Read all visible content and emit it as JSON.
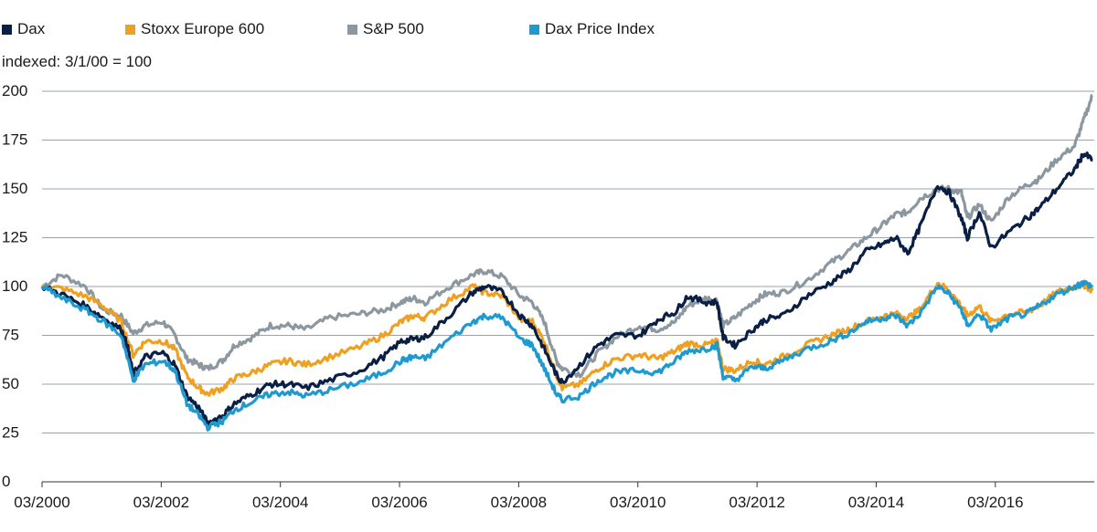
{
  "chart_data": {
    "type": "line",
    "subtitle": "indexed: 3/1/00 = 100",
    "ylim": [
      0,
      200
    ],
    "yticks": [
      "0",
      "25",
      "50",
      "75",
      "100",
      "125",
      "150",
      "175",
      "200"
    ],
    "xlim": [
      2000.17,
      2017.83
    ],
    "xticks": [
      {
        "label": "03/2000",
        "x": 2000.17
      },
      {
        "label": "03/2002",
        "x": 2002.17
      },
      {
        "label": "03/2004",
        "x": 2004.17
      },
      {
        "label": "03/2006",
        "x": 2006.17
      },
      {
        "label": "03/2008",
        "x": 2008.17
      },
      {
        "label": "03/2010",
        "x": 2010.17
      },
      {
        "label": "03/2012",
        "x": 2012.17
      },
      {
        "label": "03/2014",
        "x": 2014.17
      },
      {
        "label": "03/2016",
        "x": 2016.17
      }
    ],
    "grid": "horizontal",
    "legend_position": "top-left",
    "series": [
      {
        "name": "Dax",
        "color": "#0a1f44",
        "points": [
          [
            2000.17,
            100
          ],
          [
            2000.5,
            96
          ],
          [
            2000.9,
            90
          ],
          [
            2001.2,
            84
          ],
          [
            2001.5,
            78
          ],
          [
            2001.6,
            70
          ],
          [
            2001.7,
            55
          ],
          [
            2001.9,
            64
          ],
          [
            2002.2,
            66
          ],
          [
            2002.4,
            60
          ],
          [
            2002.6,
            44
          ],
          [
            2002.8,
            38
          ],
          [
            2002.95,
            30
          ],
          [
            2003.2,
            34
          ],
          [
            2003.4,
            40
          ],
          [
            2003.7,
            45
          ],
          [
            2004.0,
            50
          ],
          [
            2004.3,
            50
          ],
          [
            2004.6,
            48
          ],
          [
            2005.0,
            52
          ],
          [
            2005.5,
            57
          ],
          [
            2005.9,
            64
          ],
          [
            2006.2,
            72
          ],
          [
            2006.4,
            73
          ],
          [
            2006.6,
            74
          ],
          [
            2007.0,
            85
          ],
          [
            2007.4,
            97
          ],
          [
            2007.6,
            100
          ],
          [
            2007.9,
            97
          ],
          [
            2008.2,
            85
          ],
          [
            2008.4,
            80
          ],
          [
            2008.6,
            68
          ],
          [
            2008.8,
            55
          ],
          [
            2008.9,
            51
          ],
          [
            2009.2,
            60
          ],
          [
            2009.5,
            70
          ],
          [
            2009.8,
            75
          ],
          [
            2010.2,
            75
          ],
          [
            2010.5,
            83
          ],
          [
            2010.8,
            87
          ],
          [
            2011.0,
            95
          ],
          [
            2011.3,
            92
          ],
          [
            2011.5,
            92
          ],
          [
            2011.6,
            74
          ],
          [
            2011.8,
            70
          ],
          [
            2012.1,
            78
          ],
          [
            2012.3,
            83
          ],
          [
            2012.6,
            85
          ],
          [
            2013.0,
            95
          ],
          [
            2013.4,
            102
          ],
          [
            2013.7,
            108
          ],
          [
            2014.0,
            118
          ],
          [
            2014.3,
            122
          ],
          [
            2014.5,
            125
          ],
          [
            2014.7,
            117
          ],
          [
            2014.9,
            130
          ],
          [
            2015.2,
            152
          ],
          [
            2015.4,
            148
          ],
          [
            2015.6,
            135
          ],
          [
            2015.7,
            125
          ],
          [
            2015.9,
            138
          ],
          [
            2016.1,
            120
          ],
          [
            2016.4,
            128
          ],
          [
            2016.7,
            135
          ],
          [
            2016.9,
            140
          ],
          [
            2017.2,
            150
          ],
          [
            2017.5,
            160
          ],
          [
            2017.65,
            168
          ],
          [
            2017.8,
            165
          ]
        ]
      },
      {
        "name": "Stoxx Europe 600",
        "color": "#f0a020",
        "points": [
          [
            2000.17,
            100
          ],
          [
            2000.5,
            99
          ],
          [
            2000.9,
            95
          ],
          [
            2001.2,
            90
          ],
          [
            2001.5,
            82
          ],
          [
            2001.7,
            65
          ],
          [
            2001.9,
            72
          ],
          [
            2002.2,
            72
          ],
          [
            2002.4,
            68
          ],
          [
            2002.6,
            54
          ],
          [
            2002.8,
            48
          ],
          [
            2002.95,
            45
          ],
          [
            2003.2,
            48
          ],
          [
            2003.4,
            53
          ],
          [
            2003.7,
            56
          ],
          [
            2004.0,
            60
          ],
          [
            2004.3,
            62
          ],
          [
            2004.6,
            60
          ],
          [
            2005.0,
            64
          ],
          [
            2005.5,
            69
          ],
          [
            2005.9,
            75
          ],
          [
            2006.2,
            82
          ],
          [
            2006.4,
            85
          ],
          [
            2006.6,
            84
          ],
          [
            2007.0,
            93
          ],
          [
            2007.4,
            100
          ],
          [
            2007.6,
            97
          ],
          [
            2007.9,
            95
          ],
          [
            2008.2,
            83
          ],
          [
            2008.4,
            82
          ],
          [
            2008.6,
            72
          ],
          [
            2008.8,
            55
          ],
          [
            2008.9,
            48
          ],
          [
            2009.2,
            50
          ],
          [
            2009.5,
            58
          ],
          [
            2009.8,
            63
          ],
          [
            2010.2,
            65
          ],
          [
            2010.5,
            63
          ],
          [
            2010.8,
            67
          ],
          [
            2011.0,
            71
          ],
          [
            2011.3,
            70
          ],
          [
            2011.5,
            72
          ],
          [
            2011.6,
            58
          ],
          [
            2011.8,
            57
          ],
          [
            2012.1,
            62
          ],
          [
            2012.3,
            60
          ],
          [
            2012.6,
            64
          ],
          [
            2013.0,
            70
          ],
          [
            2013.4,
            75
          ],
          [
            2013.7,
            78
          ],
          [
            2014.0,
            82
          ],
          [
            2014.3,
            85
          ],
          [
            2014.5,
            86
          ],
          [
            2014.7,
            84
          ],
          [
            2014.9,
            88
          ],
          [
            2015.2,
            102
          ],
          [
            2015.4,
            98
          ],
          [
            2015.6,
            90
          ],
          [
            2015.7,
            85
          ],
          [
            2015.9,
            90
          ],
          [
            2016.1,
            82
          ],
          [
            2016.4,
            86
          ],
          [
            2016.7,
            87
          ],
          [
            2016.9,
            90
          ],
          [
            2017.2,
            97
          ],
          [
            2017.5,
            100
          ],
          [
            2017.65,
            101
          ],
          [
            2017.8,
            98
          ]
        ]
      },
      {
        "name": "S&P 500",
        "color": "#8c97a0",
        "points": [
          [
            2000.17,
            100
          ],
          [
            2000.5,
            106
          ],
          [
            2000.9,
            100
          ],
          [
            2001.2,
            88
          ],
          [
            2001.5,
            85
          ],
          [
            2001.7,
            76
          ],
          [
            2001.9,
            80
          ],
          [
            2002.2,
            82
          ],
          [
            2002.4,
            75
          ],
          [
            2002.6,
            63
          ],
          [
            2002.8,
            60
          ],
          [
            2002.95,
            58
          ],
          [
            2003.2,
            62
          ],
          [
            2003.4,
            70
          ],
          [
            2003.7,
            74
          ],
          [
            2004.0,
            80
          ],
          [
            2004.3,
            80
          ],
          [
            2004.6,
            78
          ],
          [
            2005.0,
            84
          ],
          [
            2005.5,
            86
          ],
          [
            2005.9,
            88
          ],
          [
            2006.2,
            92
          ],
          [
            2006.4,
            94
          ],
          [
            2006.6,
            92
          ],
          [
            2007.0,
            100
          ],
          [
            2007.4,
            106
          ],
          [
            2007.6,
            108
          ],
          [
            2007.9,
            105
          ],
          [
            2008.2,
            95
          ],
          [
            2008.4,
            92
          ],
          [
            2008.6,
            82
          ],
          [
            2008.8,
            62
          ],
          [
            2008.9,
            58
          ],
          [
            2009.2,
            55
          ],
          [
            2009.5,
            66
          ],
          [
            2009.8,
            74
          ],
          [
            2010.2,
            80
          ],
          [
            2010.5,
            78
          ],
          [
            2010.8,
            82
          ],
          [
            2011.0,
            90
          ],
          [
            2011.3,
            94
          ],
          [
            2011.5,
            93
          ],
          [
            2011.6,
            80
          ],
          [
            2011.8,
            84
          ],
          [
            2012.1,
            92
          ],
          [
            2012.3,
            96
          ],
          [
            2012.6,
            97
          ],
          [
            2013.0,
            103
          ],
          [
            2013.4,
            112
          ],
          [
            2013.7,
            118
          ],
          [
            2014.0,
            125
          ],
          [
            2014.3,
            132
          ],
          [
            2014.5,
            137
          ],
          [
            2014.7,
            138
          ],
          [
            2014.9,
            145
          ],
          [
            2015.2,
            150
          ],
          [
            2015.4,
            150
          ],
          [
            2015.6,
            148
          ],
          [
            2015.7,
            135
          ],
          [
            2015.9,
            142
          ],
          [
            2016.1,
            133
          ],
          [
            2016.4,
            146
          ],
          [
            2016.7,
            152
          ],
          [
            2016.9,
            155
          ],
          [
            2017.2,
            165
          ],
          [
            2017.5,
            172
          ],
          [
            2017.65,
            185
          ],
          [
            2017.8,
            198
          ]
        ]
      },
      {
        "name": "Dax Price Index",
        "color": "#1e9ad0",
        "points": [
          [
            2000.17,
            100
          ],
          [
            2000.5,
            94
          ],
          [
            2000.9,
            88
          ],
          [
            2001.2,
            82
          ],
          [
            2001.5,
            75
          ],
          [
            2001.7,
            52
          ],
          [
            2001.9,
            60
          ],
          [
            2002.2,
            62
          ],
          [
            2002.4,
            57
          ],
          [
            2002.6,
            40
          ],
          [
            2002.8,
            34
          ],
          [
            2002.95,
            28
          ],
          [
            2003.2,
            31
          ],
          [
            2003.4,
            37
          ],
          [
            2003.7,
            41
          ],
          [
            2004.0,
            45
          ],
          [
            2004.3,
            46
          ],
          [
            2004.6,
            44
          ],
          [
            2005.0,
            47
          ],
          [
            2005.5,
            51
          ],
          [
            2005.9,
            56
          ],
          [
            2006.2,
            62
          ],
          [
            2006.4,
            64
          ],
          [
            2006.6,
            63
          ],
          [
            2007.0,
            73
          ],
          [
            2007.4,
            82
          ],
          [
            2007.6,
            85
          ],
          [
            2007.9,
            84
          ],
          [
            2008.2,
            73
          ],
          [
            2008.4,
            70
          ],
          [
            2008.6,
            58
          ],
          [
            2008.8,
            45
          ],
          [
            2008.9,
            42
          ],
          [
            2009.2,
            44
          ],
          [
            2009.5,
            52
          ],
          [
            2009.8,
            56
          ],
          [
            2010.2,
            57
          ],
          [
            2010.5,
            56
          ],
          [
            2010.8,
            62
          ],
          [
            2011.0,
            67
          ],
          [
            2011.3,
            68
          ],
          [
            2011.5,
            70
          ],
          [
            2011.6,
            54
          ],
          [
            2011.8,
            52
          ],
          [
            2012.1,
            59
          ],
          [
            2012.3,
            58
          ],
          [
            2012.6,
            62
          ],
          [
            2013.0,
            68
          ],
          [
            2013.4,
            72
          ],
          [
            2013.7,
            76
          ],
          [
            2014.0,
            82
          ],
          [
            2014.3,
            84
          ],
          [
            2014.5,
            85
          ],
          [
            2014.7,
            80
          ],
          [
            2014.9,
            86
          ],
          [
            2015.2,
            100
          ],
          [
            2015.4,
            96
          ],
          [
            2015.6,
            88
          ],
          [
            2015.7,
            80
          ],
          [
            2015.9,
            86
          ],
          [
            2016.1,
            78
          ],
          [
            2016.4,
            84
          ],
          [
            2016.7,
            86
          ],
          [
            2016.9,
            90
          ],
          [
            2017.2,
            96
          ],
          [
            2017.5,
            100
          ],
          [
            2017.65,
            102
          ],
          [
            2017.8,
            100
          ]
        ]
      }
    ]
  }
}
